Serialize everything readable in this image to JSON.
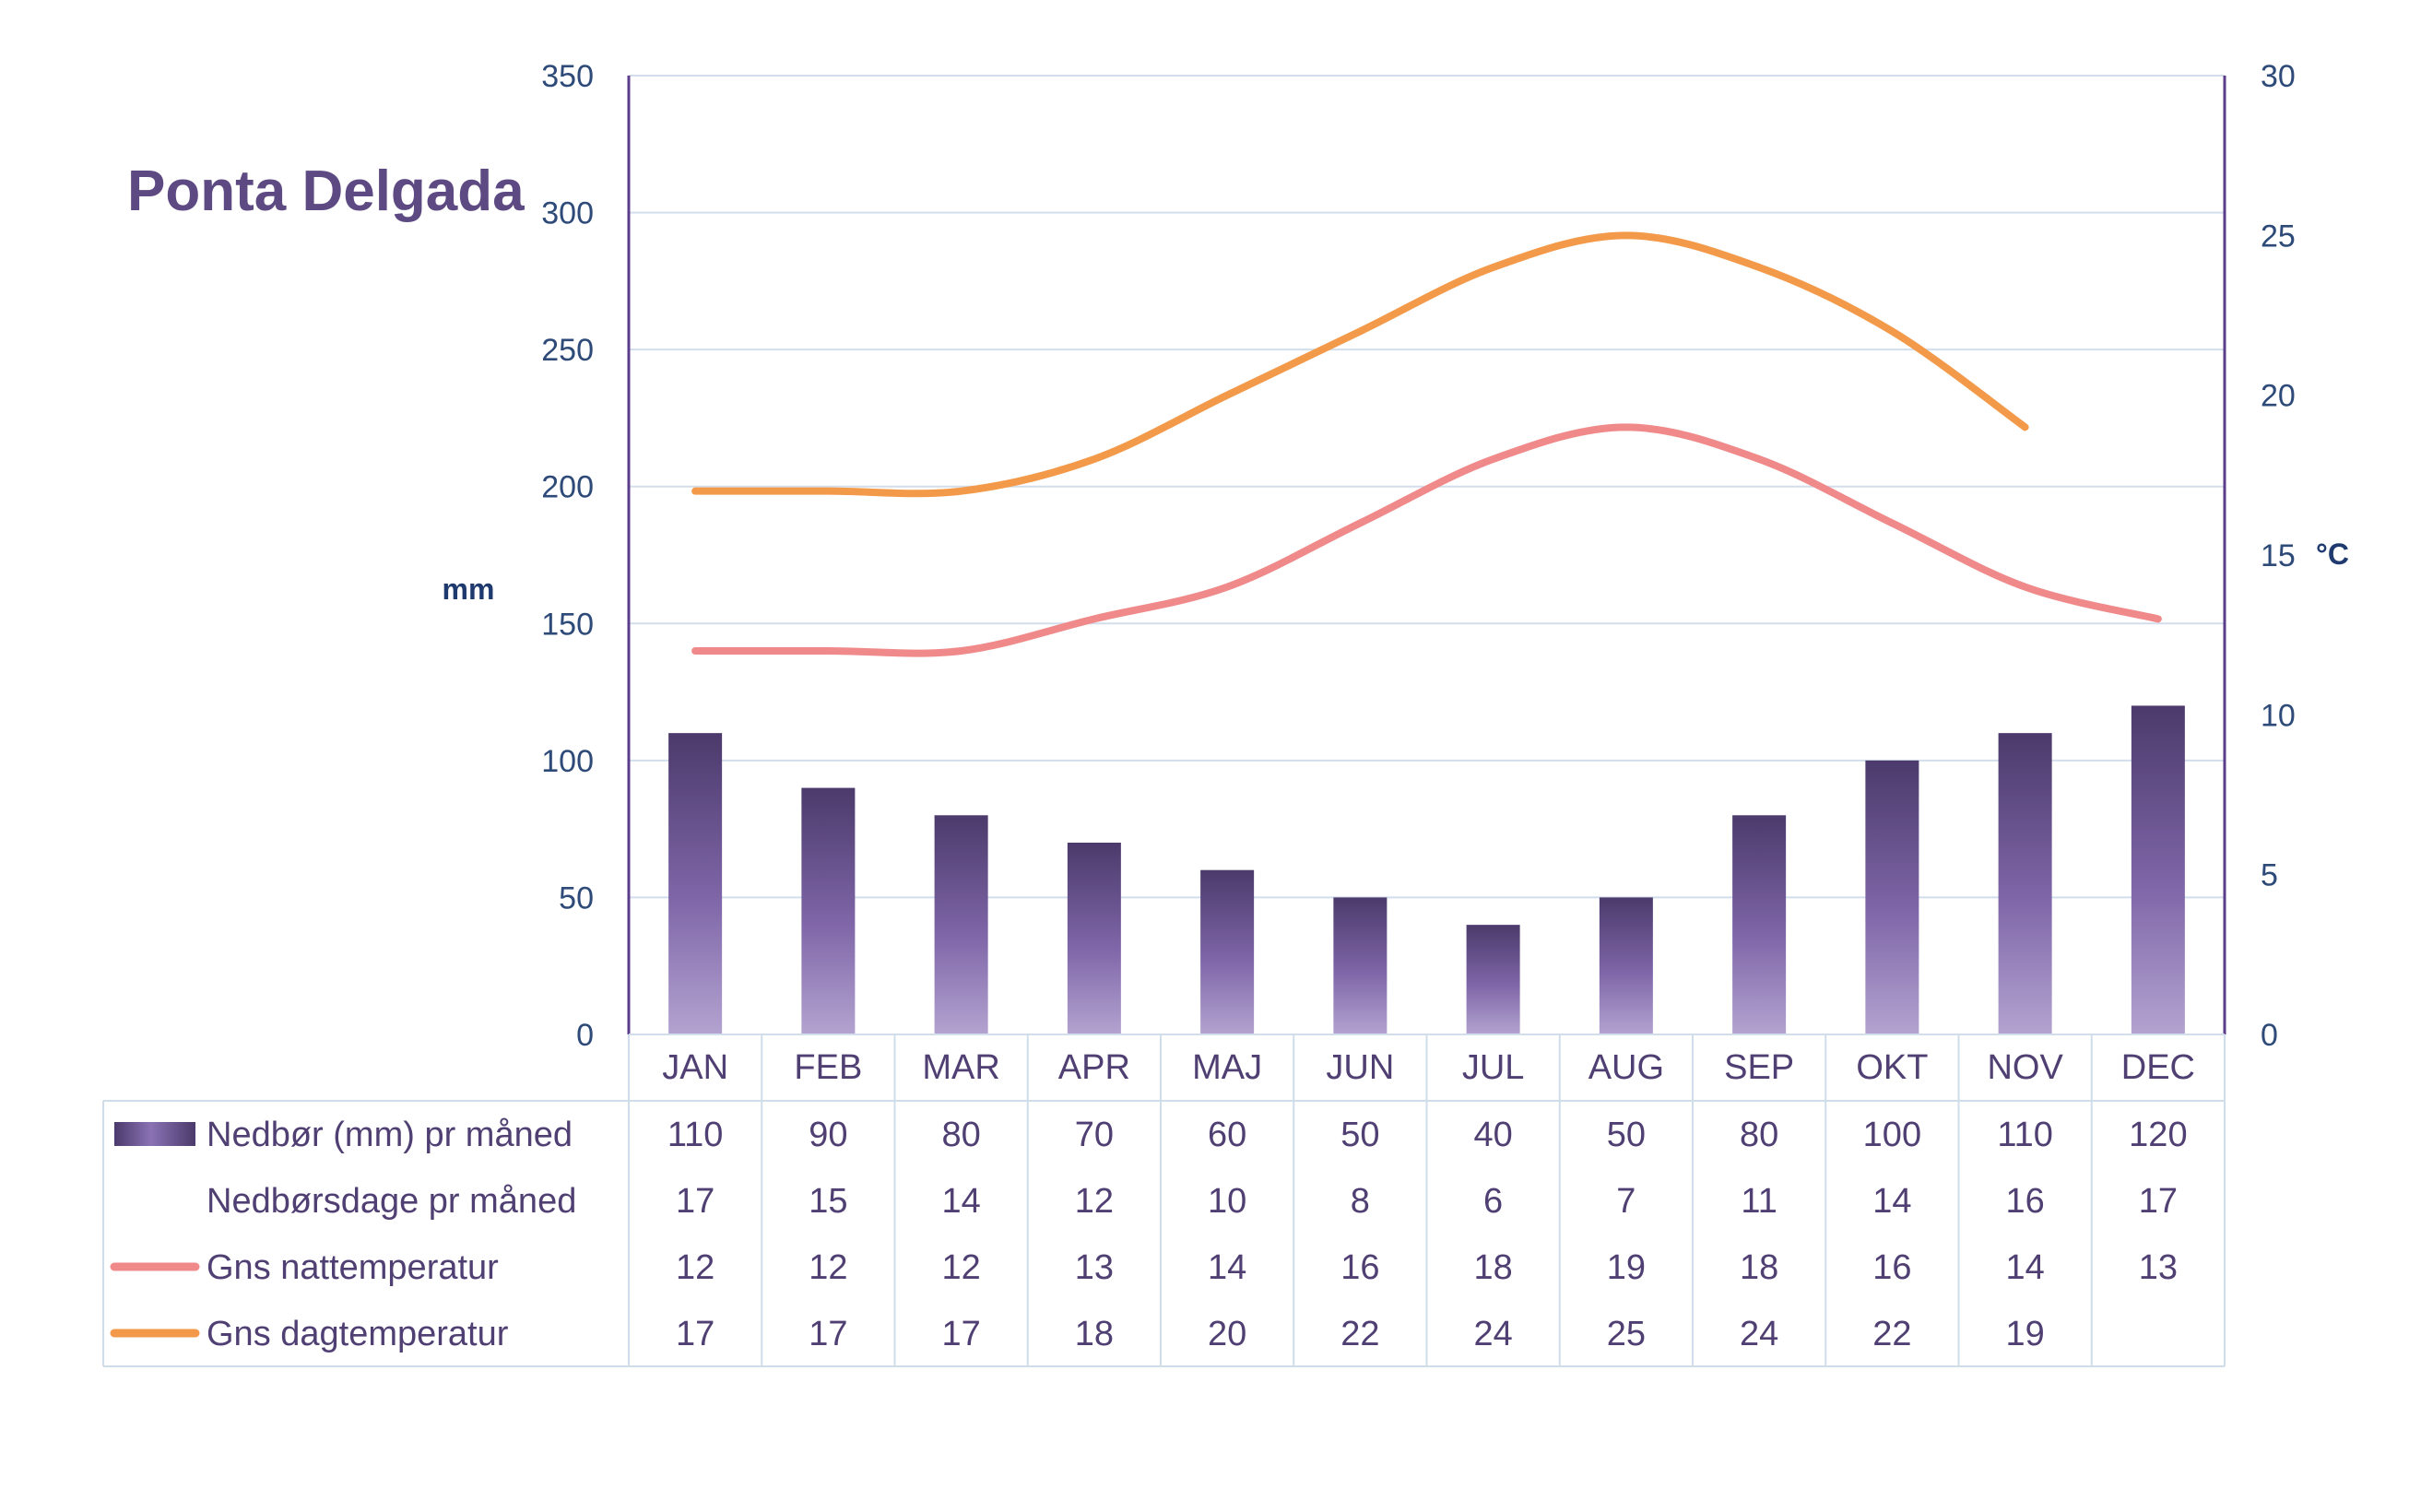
{
  "chart_data": {
    "type": "bar",
    "title": "Ponta Delgada",
    "categories": [
      "JAN",
      "FEB",
      "MAR",
      "APR",
      "MAJ",
      "JUN",
      "JUL",
      "AUG",
      "SEP",
      "OKT",
      "NOV",
      "DEC"
    ],
    "y_left": {
      "label": "mm",
      "ylim": [
        0,
        350
      ],
      "ticks": [
        "0",
        "50",
        "100",
        "150",
        "200",
        "250",
        "300",
        "350"
      ]
    },
    "y_right": {
      "label": "°C",
      "ylim": [
        0,
        30
      ],
      "ticks": [
        "0",
        "5",
        "10",
        "15",
        "20",
        "25",
        "30"
      ]
    },
    "grid": true,
    "legend": "data-table-below",
    "series": [
      {
        "name": "Nedbør (mm) pr måned",
        "type": "bar",
        "axis": "left",
        "color": "#6f5a99",
        "values": [
          110,
          90,
          80,
          70,
          60,
          50,
          40,
          50,
          80,
          100,
          110,
          120
        ]
      },
      {
        "name": "Nedbørsdage pr måned",
        "type": "none",
        "axis": "left",
        "values": [
          17,
          15,
          14,
          12,
          10,
          8,
          6,
          7,
          11,
          14,
          16,
          17
        ]
      },
      {
        "name": "Gns nattemperatur",
        "type": "line",
        "axis": "right",
        "color": "#f08a8a",
        "values": [
          12,
          12,
          12,
          13,
          14,
          16,
          18,
          19,
          18,
          16,
          14,
          13
        ]
      },
      {
        "name": "Gns dagtemperatur",
        "type": "line",
        "axis": "right",
        "color": "#f39a4a",
        "values": [
          17,
          17,
          17,
          18,
          20,
          22,
          24,
          25,
          24,
          22,
          19,
          null
        ]
      }
    ]
  }
}
